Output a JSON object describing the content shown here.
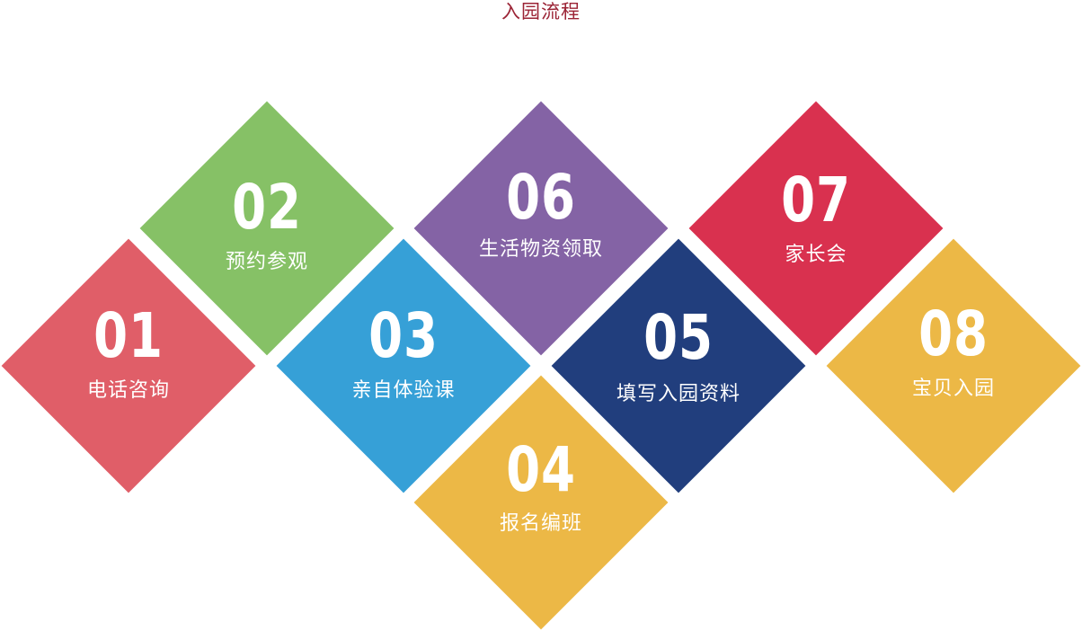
{
  "title": "入园流程",
  "steps": [
    {
      "number": "01",
      "label": "电话咨询",
      "color": "#e05e68"
    },
    {
      "number": "02",
      "label": "预约参观",
      "color": "#86c166"
    },
    {
      "number": "03",
      "label": "亲自体验课",
      "color": "#36a0d7"
    },
    {
      "number": "04",
      "label": "报名编班",
      "color": "#ecb846"
    },
    {
      "number": "05",
      "label": "填写入园资料",
      "color": "#213e7d"
    },
    {
      "number": "06",
      "label": "生活物资领取",
      "color": "#8463a5"
    },
    {
      "number": "07",
      "label": "家长会",
      "color": "#d9314f"
    },
    {
      "number": "08",
      "label": "宝贝入园",
      "color": "#ecb846"
    }
  ]
}
